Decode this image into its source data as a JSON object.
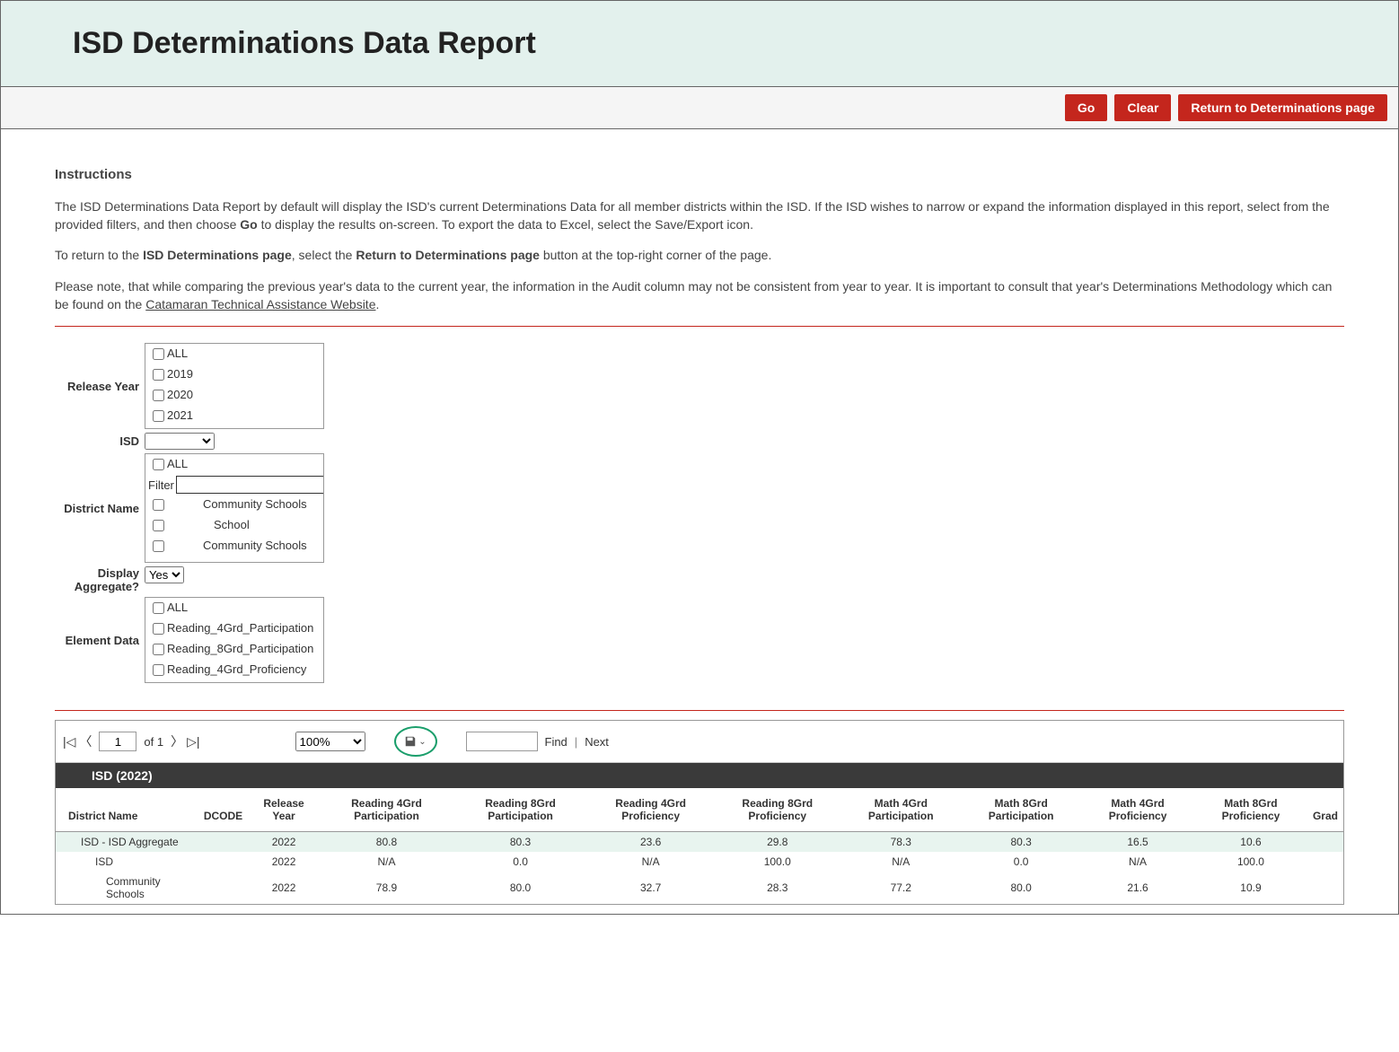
{
  "header": {
    "title": "ISD Determinations Data Report"
  },
  "buttons": {
    "go": "Go",
    "clear": "Clear",
    "return": "Return to Determinations page"
  },
  "instructions": {
    "heading": "Instructions",
    "p1a": "The ISD Determinations Data Report by default will display the ISD's current Determinations Data for all member districts within the ISD. If the ISD wishes to narrow or expand the information displayed in this report, select from the provided filters, and then choose ",
    "p1b": "Go",
    "p1c": " to display the results on-screen. To export the data to Excel, select the Save/Export icon.",
    "p2a": "To return to the ",
    "p2b": "ISD Determinations page",
    "p2c": ", select the ",
    "p2d": "Return to Determinations page",
    "p2e": " button at the top-right corner of the page.",
    "p3a": "Please note, that while comparing the previous year's data to the current year, the information in the Audit column may not be consistent from year to year. It is important to consult that year's Determinations Methodology which can be found on the ",
    "p3link": "Catamaran Technical Assistance Website",
    "p3b": "."
  },
  "filters": {
    "release_year_label": "Release Year",
    "release_year_opts": [
      "ALL",
      "2019",
      "2020",
      "2021"
    ],
    "isd_label": "ISD",
    "district_label": "District Name",
    "district_filter_label": "Filter",
    "district_opts": [
      "ALL",
      "Community Schools",
      "School",
      "Community Schools"
    ],
    "aggregate_label": "Display Aggregate?",
    "aggregate_value": "Yes",
    "element_label": "Element Data",
    "element_opts": [
      "ALL",
      "Reading_4Grd_Participation",
      "Reading_8Grd_Participation",
      "Reading_4Grd_Proficiency"
    ]
  },
  "viewer": {
    "page_value": "1",
    "page_of": "of 1",
    "zoom": "100%",
    "find": "Find",
    "next": "Next"
  },
  "report": {
    "title": "ISD (2022)",
    "columns": [
      "District Name",
      "DCODE",
      "Release Year",
      "Reading 4Grd Participation",
      "Reading 8Grd Participation",
      "Reading 4Grd Proficiency",
      "Reading 8Grd Proficiency",
      "Math 4Grd Participation",
      "Math 8Grd Participation",
      "Math 4Grd Proficiency",
      "Math 8Grd Proficiency",
      "Grad"
    ],
    "rows": [
      {
        "name": "ISD - ISD Aggregate",
        "dcode": "",
        "year": "2022",
        "r4p": "80.8",
        "r8p": "80.3",
        "r4pr": "23.6",
        "r8pr": "29.8",
        "m4p": "78.3",
        "m8p": "80.3",
        "m4pr": "16.5",
        "m8pr": "10.6",
        "cls": "agg"
      },
      {
        "name": "ISD",
        "dcode": "",
        "year": "2022",
        "r4p": "N/A",
        "r8p": "0.0",
        "r4pr": "N/A",
        "r8pr": "100.0",
        "m4p": "N/A",
        "m8p": "0.0",
        "m4pr": "N/A",
        "m8pr": "100.0",
        "cls": "std"
      },
      {
        "name": "Community Schools",
        "dcode": "",
        "year": "2022",
        "r4p": "78.9",
        "r8p": "80.0",
        "r4pr": "32.7",
        "r8pr": "28.3",
        "m4p": "77.2",
        "m8p": "80.0",
        "m4pr": "21.6",
        "m8pr": "10.9",
        "cls": "std2"
      }
    ]
  }
}
